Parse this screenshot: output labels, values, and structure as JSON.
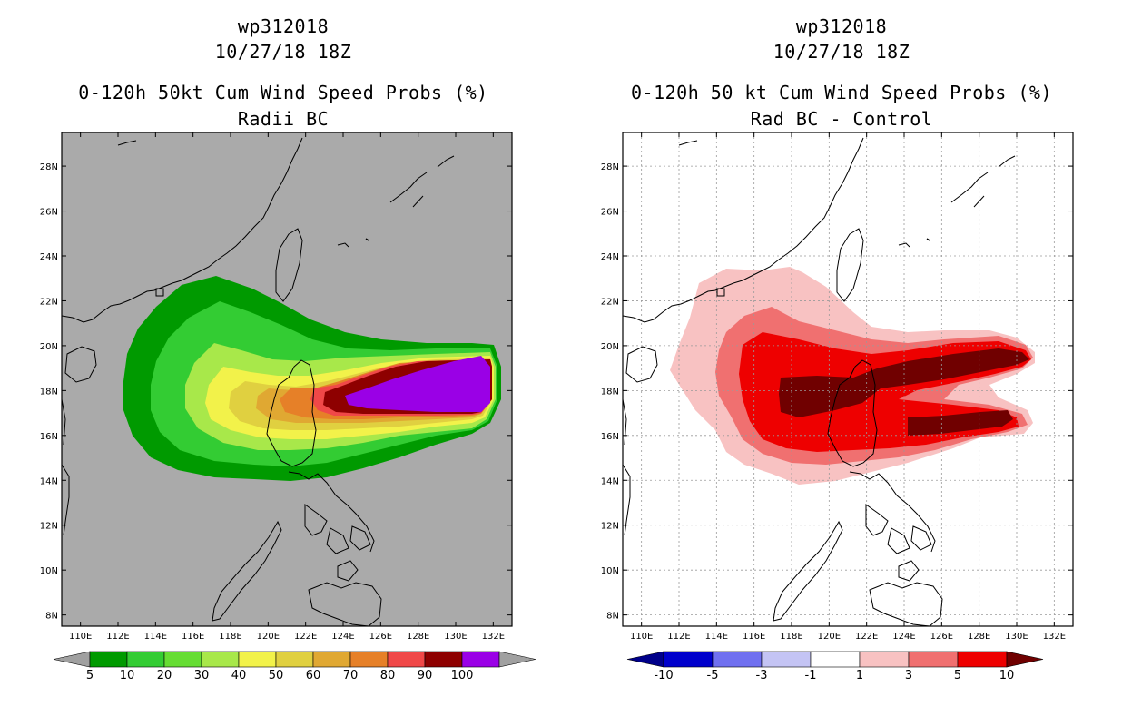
{
  "left": {
    "storm_id": "wp312018",
    "date": "10/27/18 18Z",
    "title": "0-120h 50kt Cum Wind Speed Probs (%)",
    "subtitle": "Radii BC",
    "background": "#aaaaaa"
  },
  "right": {
    "storm_id": "wp312018",
    "date": "10/27/18 18Z",
    "title": "0-120h 50 kt Cum Wind Speed Probs (%)",
    "subtitle": "Rad BC - Control",
    "background": "#ffffff"
  },
  "chart_data": [
    {
      "type": "heatmap",
      "title": "0-120h 50kt Cum Wind Speed Probs (%)",
      "subtitle": "Radii BC",
      "x_ticks": [
        "110E",
        "112E",
        "114E",
        "116E",
        "118E",
        "120E",
        "122E",
        "124E",
        "126E",
        "128E",
        "130E",
        "132E"
      ],
      "y_ticks": [
        "8N",
        "10N",
        "12N",
        "14N",
        "16N",
        "18N",
        "20N",
        "22N",
        "24N",
        "26N",
        "28N"
      ],
      "xlim": [
        109,
        133
      ],
      "ylim": [
        7.5,
        29.5
      ],
      "grid": false,
      "legend": {
        "labels": [
          "5",
          "10",
          "20",
          "30",
          "40",
          "50",
          "60",
          "70",
          "80",
          "90",
          "100"
        ],
        "colors": [
          "#009a00",
          "#33cc33",
          "#66dd33",
          "#a8e84a",
          "#f2f24a",
          "#e0d040",
          "#e0a832",
          "#e68028",
          "#f04848",
          "#8e0000",
          "#9a00e6"
        ],
        "end_colors": [
          "#a0a0a0",
          "#a0a0a0"
        ]
      }
    },
    {
      "type": "heatmap",
      "title": "0-120h 50 kt Cum Wind Speed Probs (%)",
      "subtitle": "Rad BC - Control",
      "x_ticks": [
        "110E",
        "112E",
        "114E",
        "116E",
        "118E",
        "120E",
        "122E",
        "124E",
        "126E",
        "128E",
        "130E",
        "132E"
      ],
      "y_ticks": [
        "8N",
        "10N",
        "12N",
        "14N",
        "16N",
        "18N",
        "20N",
        "22N",
        "24N",
        "26N",
        "28N"
      ],
      "xlim": [
        109,
        133
      ],
      "ylim": [
        7.5,
        29.5
      ],
      "grid": true,
      "legend": {
        "labels": [
          "-10",
          "-5",
          "-3",
          "-1",
          "1",
          "3",
          "5",
          "10"
        ],
        "colors": [
          "#0000cc",
          "#7070f0",
          "#c4c4f4",
          "#ffffff",
          "#f8c2c2",
          "#f07070",
          "#ee0000"
        ],
        "end_colors": [
          "#00008a",
          "#700000"
        ]
      }
    }
  ]
}
